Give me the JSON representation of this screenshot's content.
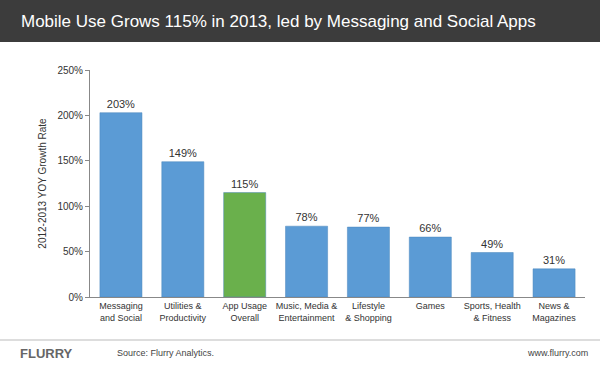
{
  "chart_data": {
    "type": "bar",
    "title": "Mobile Use Grows 115% in 2013, led by Messaging and Social Apps",
    "y_label": "2012-2013 YOY Growth Rate",
    "categories": [
      "Messaging and Social",
      "Utilities & Productivity",
      "App Usage Overall",
      "Music, Media & Entertainment",
      "Lifestyle & Shopping",
      "Games",
      "Sports, Health & Fitness",
      "News & Magazines"
    ],
    "values": [
      203,
      149,
      115,
      78,
      77,
      66,
      49,
      31
    ],
    "value_labels": [
      "203%",
      "149%",
      "115%",
      "78%",
      "77%",
      "66%",
      "49%",
      "31%"
    ],
    "colors": [
      "#5b9bd5",
      "#5b9bd5",
      "#6ab04c",
      "#5b9bd5",
      "#5b9bd5",
      "#5b9bd5",
      "#5b9bd5",
      "#5b9bd5"
    ],
    "ylim": [
      0,
      250
    ],
    "yticks": [
      {
        "value": 0,
        "label": "0%"
      },
      {
        "value": 50,
        "label": "50%"
      },
      {
        "value": 100,
        "label": "100%"
      },
      {
        "value": 150,
        "label": "150%"
      },
      {
        "value": 200,
        "label": "200%"
      },
      {
        "value": 250,
        "label": "250%"
      }
    ],
    "grid": false,
    "data_labels": true,
    "annotations": [
      "FLURRY",
      "Source: Flurry Analytics.",
      "www.flurry.com"
    ]
  }
}
